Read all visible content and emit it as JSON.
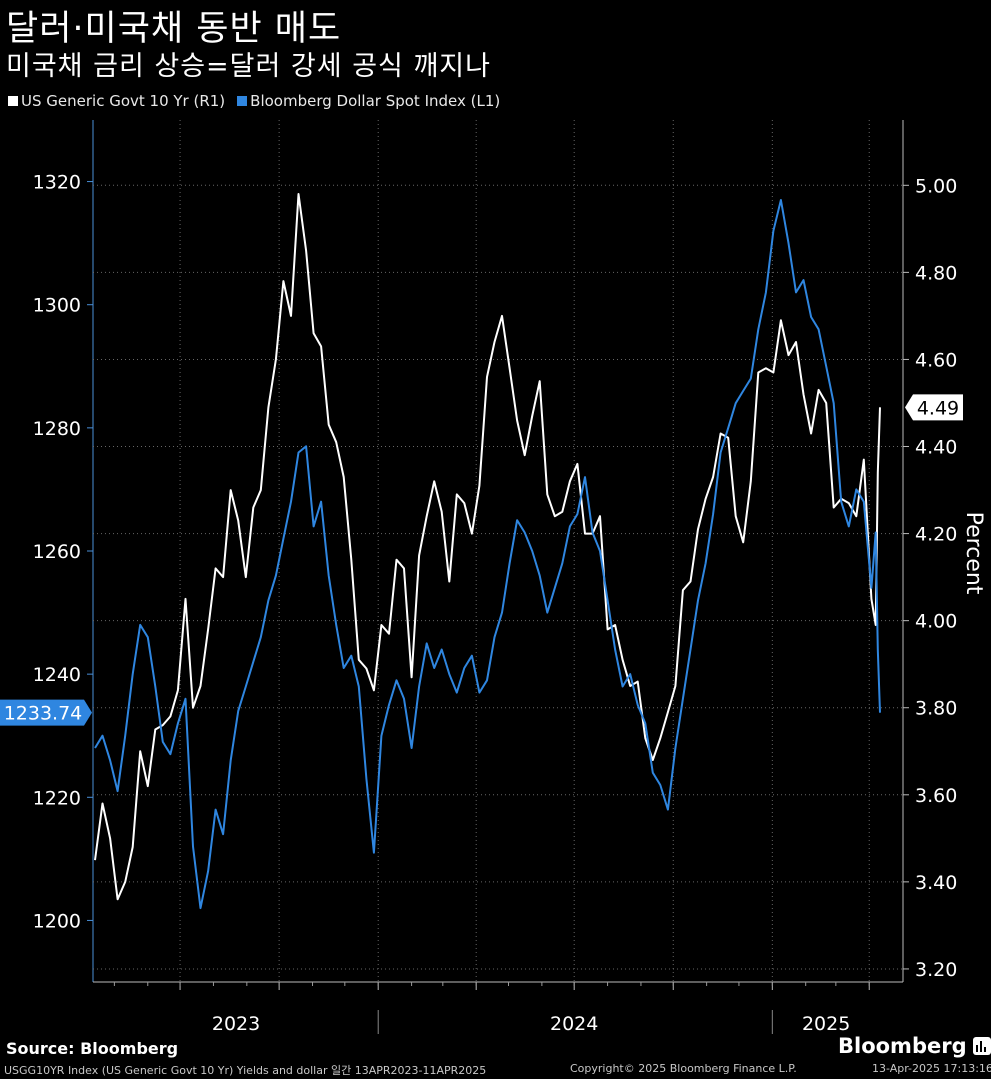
{
  "header": {
    "title": "달러·미국채 동반 매도",
    "subtitle": "미국채 금리 상승=달러 강세 공식 깨지나"
  },
  "legend": [
    {
      "label": "US Generic Govt 10 Yr (R1)",
      "color": "#ffffff"
    },
    {
      "label": "Bloomberg Dollar Spot Index (L1)",
      "color": "#2f86e0"
    }
  ],
  "footer": {
    "source": "Source: Bloomberg",
    "footnote_left": "USGG10YR Index (US Generic Govt 10 Yr) Yields and dollar 일간 13APR2023-11APR2025",
    "footnote_center": "Copyright© 2025 Bloomberg Finance L.P.",
    "footnote_right": "13-Apr-2025 17:13:16",
    "brand": "Bloomberg",
    "brand_icon": "bloomberg-terminal-icon"
  },
  "chart_data": {
    "type": "line",
    "x_range": [
      "2023-04-13",
      "2025-04-11"
    ],
    "x_tick_labels": [
      "2023",
      "2024",
      "2025"
    ],
    "left_axis": {
      "series": "Bloomberg Dollar Spot Index (L1)",
      "ticks": [
        1200,
        1220,
        1240,
        1260,
        1280,
        1300,
        1320
      ],
      "ylim": [
        1190,
        1330
      ],
      "last_value_label": "1233.74",
      "color": "#2f86e0"
    },
    "right_axis": {
      "series": "US Generic Govt 10 Yr (R1)",
      "label": "Percent",
      "ticks": [
        "3.20",
        "3.40",
        "3.60",
        "3.80",
        "4.00",
        "4.20",
        "4.40",
        "4.60",
        "4.80",
        "5.00"
      ],
      "ylim": [
        3.17,
        5.15
      ],
      "last_value_label": "4.49",
      "color": "#ffffff"
    },
    "grid": true,
    "series": [
      {
        "name": "US Generic Govt 10 Yr (R1)",
        "axis": "right",
        "color": "#ffffff",
        "points": [
          [
            "2023-04-13",
            3.45
          ],
          [
            "2023-04-20",
            3.58
          ],
          [
            "2023-04-27",
            3.5
          ],
          [
            "2023-05-04",
            3.36
          ],
          [
            "2023-05-11",
            3.4
          ],
          [
            "2023-05-18",
            3.48
          ],
          [
            "2023-05-25",
            3.7
          ],
          [
            "2023-06-01",
            3.62
          ],
          [
            "2023-06-08",
            3.75
          ],
          [
            "2023-06-15",
            3.76
          ],
          [
            "2023-06-22",
            3.78
          ],
          [
            "2023-06-29",
            3.84
          ],
          [
            "2023-07-06",
            4.05
          ],
          [
            "2023-07-13",
            3.8
          ],
          [
            "2023-07-20",
            3.85
          ],
          [
            "2023-07-27",
            3.98
          ],
          [
            "2023-08-03",
            4.12
          ],
          [
            "2023-08-10",
            4.1
          ],
          [
            "2023-08-17",
            4.3
          ],
          [
            "2023-08-24",
            4.23
          ],
          [
            "2023-08-31",
            4.1
          ],
          [
            "2023-09-07",
            4.26
          ],
          [
            "2023-09-14",
            4.3
          ],
          [
            "2023-09-21",
            4.49
          ],
          [
            "2023-09-28",
            4.6
          ],
          [
            "2023-10-05",
            4.78
          ],
          [
            "2023-10-12",
            4.7
          ],
          [
            "2023-10-19",
            4.98
          ],
          [
            "2023-10-26",
            4.85
          ],
          [
            "2023-11-02",
            4.66
          ],
          [
            "2023-11-09",
            4.63
          ],
          [
            "2023-11-16",
            4.45
          ],
          [
            "2023-11-23",
            4.41
          ],
          [
            "2023-11-30",
            4.33
          ],
          [
            "2023-12-07",
            4.14
          ],
          [
            "2023-12-14",
            3.91
          ],
          [
            "2023-12-21",
            3.89
          ],
          [
            "2023-12-28",
            3.84
          ],
          [
            "2024-01-04",
            3.99
          ],
          [
            "2024-01-11",
            3.97
          ],
          [
            "2024-01-18",
            4.14
          ],
          [
            "2024-01-25",
            4.12
          ],
          [
            "2024-02-01",
            3.87
          ],
          [
            "2024-02-08",
            4.15
          ],
          [
            "2024-02-15",
            4.24
          ],
          [
            "2024-02-22",
            4.32
          ],
          [
            "2024-02-29",
            4.25
          ],
          [
            "2024-03-07",
            4.09
          ],
          [
            "2024-03-14",
            4.29
          ],
          [
            "2024-03-21",
            4.27
          ],
          [
            "2024-03-28",
            4.2
          ],
          [
            "2024-04-04",
            4.31
          ],
          [
            "2024-04-11",
            4.56
          ],
          [
            "2024-04-18",
            4.64
          ],
          [
            "2024-04-25",
            4.7
          ],
          [
            "2024-05-02",
            4.58
          ],
          [
            "2024-05-09",
            4.46
          ],
          [
            "2024-05-16",
            4.38
          ],
          [
            "2024-05-23",
            4.47
          ],
          [
            "2024-05-30",
            4.55
          ],
          [
            "2024-06-06",
            4.29
          ],
          [
            "2024-06-13",
            4.24
          ],
          [
            "2024-06-20",
            4.25
          ],
          [
            "2024-06-27",
            4.32
          ],
          [
            "2024-07-04",
            4.36
          ],
          [
            "2024-07-11",
            4.2
          ],
          [
            "2024-07-18",
            4.2
          ],
          [
            "2024-07-25",
            4.24
          ],
          [
            "2024-08-01",
            3.98
          ],
          [
            "2024-08-08",
            3.99
          ],
          [
            "2024-08-15",
            3.91
          ],
          [
            "2024-08-22",
            3.85
          ],
          [
            "2024-08-29",
            3.86
          ],
          [
            "2024-09-05",
            3.73
          ],
          [
            "2024-09-12",
            3.68
          ],
          [
            "2024-09-19",
            3.73
          ],
          [
            "2024-09-26",
            3.79
          ],
          [
            "2024-10-03",
            3.85
          ],
          [
            "2024-10-10",
            4.07
          ],
          [
            "2024-10-17",
            4.09
          ],
          [
            "2024-10-24",
            4.21
          ],
          [
            "2024-10-31",
            4.28
          ],
          [
            "2024-11-07",
            4.33
          ],
          [
            "2024-11-14",
            4.43
          ],
          [
            "2024-11-21",
            4.42
          ],
          [
            "2024-11-28",
            4.24
          ],
          [
            "2024-12-05",
            4.18
          ],
          [
            "2024-12-12",
            4.32
          ],
          [
            "2024-12-19",
            4.57
          ],
          [
            "2024-12-26",
            4.58
          ],
          [
            "2025-01-02",
            4.57
          ],
          [
            "2025-01-09",
            4.69
          ],
          [
            "2025-01-16",
            4.61
          ],
          [
            "2025-01-23",
            4.64
          ],
          [
            "2025-01-30",
            4.52
          ],
          [
            "2025-02-06",
            4.43
          ],
          [
            "2025-02-13",
            4.53
          ],
          [
            "2025-02-20",
            4.5
          ],
          [
            "2025-02-27",
            4.26
          ],
          [
            "2025-03-06",
            4.28
          ],
          [
            "2025-03-13",
            4.27
          ],
          [
            "2025-03-20",
            4.24
          ],
          [
            "2025-03-27",
            4.37
          ],
          [
            "2025-04-03",
            4.05
          ],
          [
            "2025-04-07",
            3.99
          ],
          [
            "2025-04-09",
            4.34
          ],
          [
            "2025-04-11",
            4.49
          ]
        ]
      },
      {
        "name": "Bloomberg Dollar Spot Index (L1)",
        "axis": "left",
        "color": "#2f86e0",
        "points": [
          [
            "2023-04-13",
            1228
          ],
          [
            "2023-04-20",
            1230
          ],
          [
            "2023-04-27",
            1226
          ],
          [
            "2023-05-04",
            1221
          ],
          [
            "2023-05-11",
            1230
          ],
          [
            "2023-05-18",
            1240
          ],
          [
            "2023-05-25",
            1248
          ],
          [
            "2023-06-01",
            1246
          ],
          [
            "2023-06-08",
            1238
          ],
          [
            "2023-06-15",
            1229
          ],
          [
            "2023-06-22",
            1227
          ],
          [
            "2023-06-29",
            1232
          ],
          [
            "2023-07-06",
            1236
          ],
          [
            "2023-07-13",
            1212
          ],
          [
            "2023-07-20",
            1202
          ],
          [
            "2023-07-27",
            1208
          ],
          [
            "2023-08-03",
            1218
          ],
          [
            "2023-08-10",
            1214
          ],
          [
            "2023-08-17",
            1226
          ],
          [
            "2023-08-24",
            1234
          ],
          [
            "2023-08-31",
            1238
          ],
          [
            "2023-09-07",
            1242
          ],
          [
            "2023-09-14",
            1246
          ],
          [
            "2023-09-21",
            1252
          ],
          [
            "2023-09-28",
            1256
          ],
          [
            "2023-10-05",
            1262
          ],
          [
            "2023-10-12",
            1268
          ],
          [
            "2023-10-19",
            1276
          ],
          [
            "2023-10-26",
            1277
          ],
          [
            "2023-11-02",
            1264
          ],
          [
            "2023-11-09",
            1268
          ],
          [
            "2023-11-16",
            1256
          ],
          [
            "2023-11-23",
            1248
          ],
          [
            "2023-11-30",
            1241
          ],
          [
            "2023-12-07",
            1243
          ],
          [
            "2023-12-14",
            1238
          ],
          [
            "2023-12-21",
            1223
          ],
          [
            "2023-12-28",
            1211
          ],
          [
            "2024-01-04",
            1230
          ],
          [
            "2024-01-11",
            1235
          ],
          [
            "2024-01-18",
            1239
          ],
          [
            "2024-01-25",
            1236
          ],
          [
            "2024-02-01",
            1228
          ],
          [
            "2024-02-08",
            1238
          ],
          [
            "2024-02-15",
            1245
          ],
          [
            "2024-02-22",
            1241
          ],
          [
            "2024-02-29",
            1244
          ],
          [
            "2024-03-07",
            1240
          ],
          [
            "2024-03-14",
            1237
          ],
          [
            "2024-03-21",
            1241
          ],
          [
            "2024-03-28",
            1243
          ],
          [
            "2024-04-04",
            1237
          ],
          [
            "2024-04-11",
            1239
          ],
          [
            "2024-04-18",
            1246
          ],
          [
            "2024-04-25",
            1250
          ],
          [
            "2024-05-02",
            1258
          ],
          [
            "2024-05-09",
            1265
          ],
          [
            "2024-05-16",
            1263
          ],
          [
            "2024-05-23",
            1260
          ],
          [
            "2024-05-30",
            1256
          ],
          [
            "2024-06-06",
            1250
          ],
          [
            "2024-06-13",
            1254
          ],
          [
            "2024-06-20",
            1258
          ],
          [
            "2024-06-27",
            1264
          ],
          [
            "2024-07-04",
            1266
          ],
          [
            "2024-07-11",
            1272
          ],
          [
            "2024-07-18",
            1263
          ],
          [
            "2024-07-25",
            1260
          ],
          [
            "2024-08-01",
            1252
          ],
          [
            "2024-08-08",
            1244
          ],
          [
            "2024-08-15",
            1238
          ],
          [
            "2024-08-22",
            1240
          ],
          [
            "2024-08-29",
            1235
          ],
          [
            "2024-09-05",
            1232
          ],
          [
            "2024-09-12",
            1224
          ],
          [
            "2024-09-19",
            1222
          ],
          [
            "2024-09-26",
            1218
          ],
          [
            "2024-10-03",
            1228
          ],
          [
            "2024-10-10",
            1236
          ],
          [
            "2024-10-17",
            1244
          ],
          [
            "2024-10-24",
            1252
          ],
          [
            "2024-10-31",
            1258
          ],
          [
            "2024-11-07",
            1266
          ],
          [
            "2024-11-14",
            1276
          ],
          [
            "2024-11-21",
            1280
          ],
          [
            "2024-11-28",
            1284
          ],
          [
            "2024-12-05",
            1286
          ],
          [
            "2024-12-12",
            1288
          ],
          [
            "2024-12-19",
            1296
          ],
          [
            "2024-12-26",
            1302
          ],
          [
            "2025-01-02",
            1312
          ],
          [
            "2025-01-09",
            1317
          ],
          [
            "2025-01-16",
            1310
          ],
          [
            "2025-01-23",
            1302
          ],
          [
            "2025-01-30",
            1304
          ],
          [
            "2025-02-06",
            1298
          ],
          [
            "2025-02-13",
            1296
          ],
          [
            "2025-02-20",
            1290
          ],
          [
            "2025-02-27",
            1284
          ],
          [
            "2025-03-06",
            1268
          ],
          [
            "2025-03-13",
            1264
          ],
          [
            "2025-03-20",
            1270
          ],
          [
            "2025-03-27",
            1268
          ],
          [
            "2025-04-03",
            1254
          ],
          [
            "2025-04-07",
            1263
          ],
          [
            "2025-04-09",
            1244
          ],
          [
            "2025-04-11",
            1233.74
          ]
        ]
      }
    ]
  }
}
